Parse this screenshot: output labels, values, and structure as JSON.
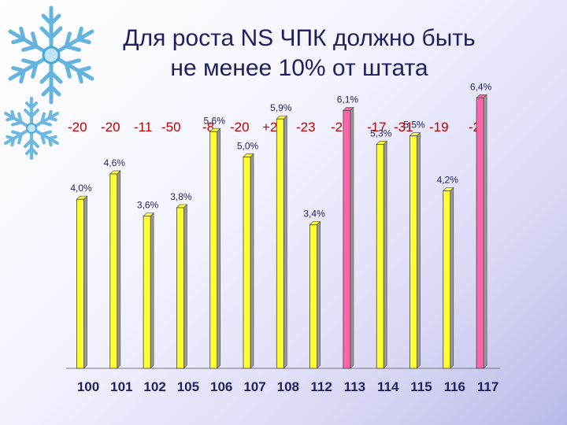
{
  "title_lines": [
    "Для роста NS ЧПК должно быть",
    "не менее 10% от штата"
  ],
  "deltas": [
    "-20",
    "-20",
    "-11",
    "-50",
    "-8",
    "-20",
    "+2",
    "-23",
    "-21",
    "-17",
    "-31",
    "-19",
    "-2"
  ],
  "colors": {
    "bar_yellow": "#ffff33",
    "bar_pink": "#ff66aa",
    "delta_text": "#c00000",
    "title_text": "#1f1f5e",
    "snowflake": "#4aa8d8"
  },
  "icons": [
    "snowflake-icon",
    "snowflake-icon"
  ],
  "chart_data": {
    "type": "bar",
    "categories": [
      "100",
      "101",
      "102",
      "105",
      "106",
      "107",
      "108",
      "112",
      "113",
      "114",
      "115",
      "116",
      "117"
    ],
    "values": [
      4.0,
      4.6,
      3.6,
      3.8,
      5.6,
      5.0,
      5.9,
      3.4,
      6.1,
      5.3,
      5.5,
      4.2,
      6.4
    ],
    "labels": [
      "4,0%",
      "4,6%",
      "3,6%",
      "3,8%",
      "5,6%",
      "5,0%",
      "5,9%",
      "3,4%",
      "6,1%",
      "5,3%",
      "5,5%",
      "4,2%",
      "6,4%"
    ],
    "highlighted": [
      false,
      false,
      false,
      false,
      false,
      false,
      false,
      false,
      true,
      false,
      false,
      false,
      true
    ],
    "title": "",
    "xlabel": "",
    "ylabel": "",
    "ylim": [
      0,
      7
    ],
    "grid": false,
    "legend": "none"
  }
}
